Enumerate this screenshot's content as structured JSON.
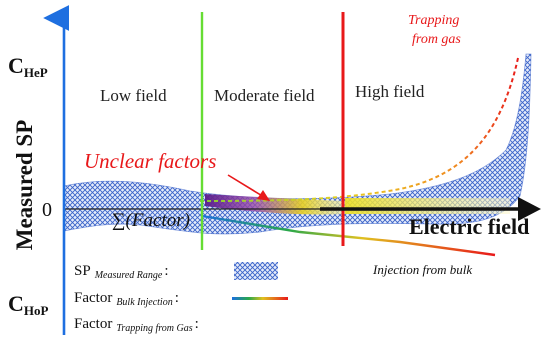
{
  "axes": {
    "y_label": "Measured SP",
    "x_label": "Electric field",
    "zero_label": "0",
    "y_top_label": {
      "base": "C",
      "sub": "HeP"
    },
    "y_bottom_label": {
      "base": "C",
      "sub": "HoP"
    }
  },
  "regions": {
    "low": "Low field",
    "moderate": "Moderate field",
    "high": "High field"
  },
  "annotations": {
    "unclear": "Unclear factors",
    "trapping_line1": "Trapping",
    "trapping_line2": "from gas",
    "injection": "Injection from bulk",
    "sum_factor": "∑(Factor)"
  },
  "legend": {
    "sp": {
      "base": "SP",
      "sub": "Measured Range",
      "colon": ":"
    },
    "bulk": {
      "base": "Factor",
      "sub": "Bulk Injection",
      "colon": ":"
    },
    "gas": {
      "base": "Factor",
      "sub": "Trapping from Gas",
      "colon": ":"
    }
  },
  "colors": {
    "axis": "#1e6fe0",
    "low_boundary": "#66dd33",
    "high_boundary": "#e8181a",
    "band": "#3a63c9",
    "unclear_text": "#e8181a",
    "trapping_text": "#e8181a"
  }
}
